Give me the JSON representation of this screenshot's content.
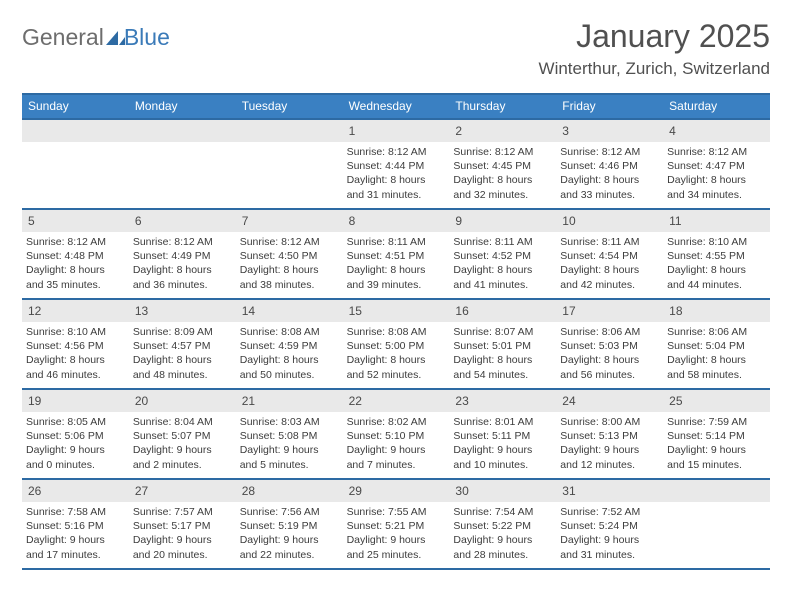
{
  "brand": {
    "word1": "General",
    "word2": "Blue"
  },
  "header": {
    "title": "January 2025",
    "location": "Winterthur, Zurich, Switzerland"
  },
  "styling": {
    "page_bg": "#ffffff",
    "header_bar_bg": "#3a80c2",
    "header_bar_border": "#2d6aa3",
    "daynum_bg": "#e9e9e9",
    "text_color": "#3c3c3c",
    "title_color": "#505050",
    "logo_gray": "#6d6d6d",
    "logo_blue": "#3a7ab8",
    "weekday_fontsize": 12,
    "daynum_fontsize": 12,
    "body_fontsize": 10.5,
    "title_fontsize": 32,
    "location_fontsize": 17
  },
  "weekdays": [
    "Sunday",
    "Monday",
    "Tuesday",
    "Wednesday",
    "Thursday",
    "Friday",
    "Saturday"
  ],
  "weeks": [
    [
      {
        "n": "",
        "r": "",
        "s": "",
        "d1": "",
        "d2": ""
      },
      {
        "n": "",
        "r": "",
        "s": "",
        "d1": "",
        "d2": ""
      },
      {
        "n": "",
        "r": "",
        "s": "",
        "d1": "",
        "d2": ""
      },
      {
        "n": "1",
        "r": "Sunrise: 8:12 AM",
        "s": "Sunset: 4:44 PM",
        "d1": "Daylight: 8 hours",
        "d2": "and 31 minutes."
      },
      {
        "n": "2",
        "r": "Sunrise: 8:12 AM",
        "s": "Sunset: 4:45 PM",
        "d1": "Daylight: 8 hours",
        "d2": "and 32 minutes."
      },
      {
        "n": "3",
        "r": "Sunrise: 8:12 AM",
        "s": "Sunset: 4:46 PM",
        "d1": "Daylight: 8 hours",
        "d2": "and 33 minutes."
      },
      {
        "n": "4",
        "r": "Sunrise: 8:12 AM",
        "s": "Sunset: 4:47 PM",
        "d1": "Daylight: 8 hours",
        "d2": "and 34 minutes."
      }
    ],
    [
      {
        "n": "5",
        "r": "Sunrise: 8:12 AM",
        "s": "Sunset: 4:48 PM",
        "d1": "Daylight: 8 hours",
        "d2": "and 35 minutes."
      },
      {
        "n": "6",
        "r": "Sunrise: 8:12 AM",
        "s": "Sunset: 4:49 PM",
        "d1": "Daylight: 8 hours",
        "d2": "and 36 minutes."
      },
      {
        "n": "7",
        "r": "Sunrise: 8:12 AM",
        "s": "Sunset: 4:50 PM",
        "d1": "Daylight: 8 hours",
        "d2": "and 38 minutes."
      },
      {
        "n": "8",
        "r": "Sunrise: 8:11 AM",
        "s": "Sunset: 4:51 PM",
        "d1": "Daylight: 8 hours",
        "d2": "and 39 minutes."
      },
      {
        "n": "9",
        "r": "Sunrise: 8:11 AM",
        "s": "Sunset: 4:52 PM",
        "d1": "Daylight: 8 hours",
        "d2": "and 41 minutes."
      },
      {
        "n": "10",
        "r": "Sunrise: 8:11 AM",
        "s": "Sunset: 4:54 PM",
        "d1": "Daylight: 8 hours",
        "d2": "and 42 minutes."
      },
      {
        "n": "11",
        "r": "Sunrise: 8:10 AM",
        "s": "Sunset: 4:55 PM",
        "d1": "Daylight: 8 hours",
        "d2": "and 44 minutes."
      }
    ],
    [
      {
        "n": "12",
        "r": "Sunrise: 8:10 AM",
        "s": "Sunset: 4:56 PM",
        "d1": "Daylight: 8 hours",
        "d2": "and 46 minutes."
      },
      {
        "n": "13",
        "r": "Sunrise: 8:09 AM",
        "s": "Sunset: 4:57 PM",
        "d1": "Daylight: 8 hours",
        "d2": "and 48 minutes."
      },
      {
        "n": "14",
        "r": "Sunrise: 8:08 AM",
        "s": "Sunset: 4:59 PM",
        "d1": "Daylight: 8 hours",
        "d2": "and 50 minutes."
      },
      {
        "n": "15",
        "r": "Sunrise: 8:08 AM",
        "s": "Sunset: 5:00 PM",
        "d1": "Daylight: 8 hours",
        "d2": "and 52 minutes."
      },
      {
        "n": "16",
        "r": "Sunrise: 8:07 AM",
        "s": "Sunset: 5:01 PM",
        "d1": "Daylight: 8 hours",
        "d2": "and 54 minutes."
      },
      {
        "n": "17",
        "r": "Sunrise: 8:06 AM",
        "s": "Sunset: 5:03 PM",
        "d1": "Daylight: 8 hours",
        "d2": "and 56 minutes."
      },
      {
        "n": "18",
        "r": "Sunrise: 8:06 AM",
        "s": "Sunset: 5:04 PM",
        "d1": "Daylight: 8 hours",
        "d2": "and 58 minutes."
      }
    ],
    [
      {
        "n": "19",
        "r": "Sunrise: 8:05 AM",
        "s": "Sunset: 5:06 PM",
        "d1": "Daylight: 9 hours",
        "d2": "and 0 minutes."
      },
      {
        "n": "20",
        "r": "Sunrise: 8:04 AM",
        "s": "Sunset: 5:07 PM",
        "d1": "Daylight: 9 hours",
        "d2": "and 2 minutes."
      },
      {
        "n": "21",
        "r": "Sunrise: 8:03 AM",
        "s": "Sunset: 5:08 PM",
        "d1": "Daylight: 9 hours",
        "d2": "and 5 minutes."
      },
      {
        "n": "22",
        "r": "Sunrise: 8:02 AM",
        "s": "Sunset: 5:10 PM",
        "d1": "Daylight: 9 hours",
        "d2": "and 7 minutes."
      },
      {
        "n": "23",
        "r": "Sunrise: 8:01 AM",
        "s": "Sunset: 5:11 PM",
        "d1": "Daylight: 9 hours",
        "d2": "and 10 minutes."
      },
      {
        "n": "24",
        "r": "Sunrise: 8:00 AM",
        "s": "Sunset: 5:13 PM",
        "d1": "Daylight: 9 hours",
        "d2": "and 12 minutes."
      },
      {
        "n": "25",
        "r": "Sunrise: 7:59 AM",
        "s": "Sunset: 5:14 PM",
        "d1": "Daylight: 9 hours",
        "d2": "and 15 minutes."
      }
    ],
    [
      {
        "n": "26",
        "r": "Sunrise: 7:58 AM",
        "s": "Sunset: 5:16 PM",
        "d1": "Daylight: 9 hours",
        "d2": "and 17 minutes."
      },
      {
        "n": "27",
        "r": "Sunrise: 7:57 AM",
        "s": "Sunset: 5:17 PM",
        "d1": "Daylight: 9 hours",
        "d2": "and 20 minutes."
      },
      {
        "n": "28",
        "r": "Sunrise: 7:56 AM",
        "s": "Sunset: 5:19 PM",
        "d1": "Daylight: 9 hours",
        "d2": "and 22 minutes."
      },
      {
        "n": "29",
        "r": "Sunrise: 7:55 AM",
        "s": "Sunset: 5:21 PM",
        "d1": "Daylight: 9 hours",
        "d2": "and 25 minutes."
      },
      {
        "n": "30",
        "r": "Sunrise: 7:54 AM",
        "s": "Sunset: 5:22 PM",
        "d1": "Daylight: 9 hours",
        "d2": "and 28 minutes."
      },
      {
        "n": "31",
        "r": "Sunrise: 7:52 AM",
        "s": "Sunset: 5:24 PM",
        "d1": "Daylight: 9 hours",
        "d2": "and 31 minutes."
      },
      {
        "n": "",
        "r": "",
        "s": "",
        "d1": "",
        "d2": ""
      }
    ]
  ]
}
